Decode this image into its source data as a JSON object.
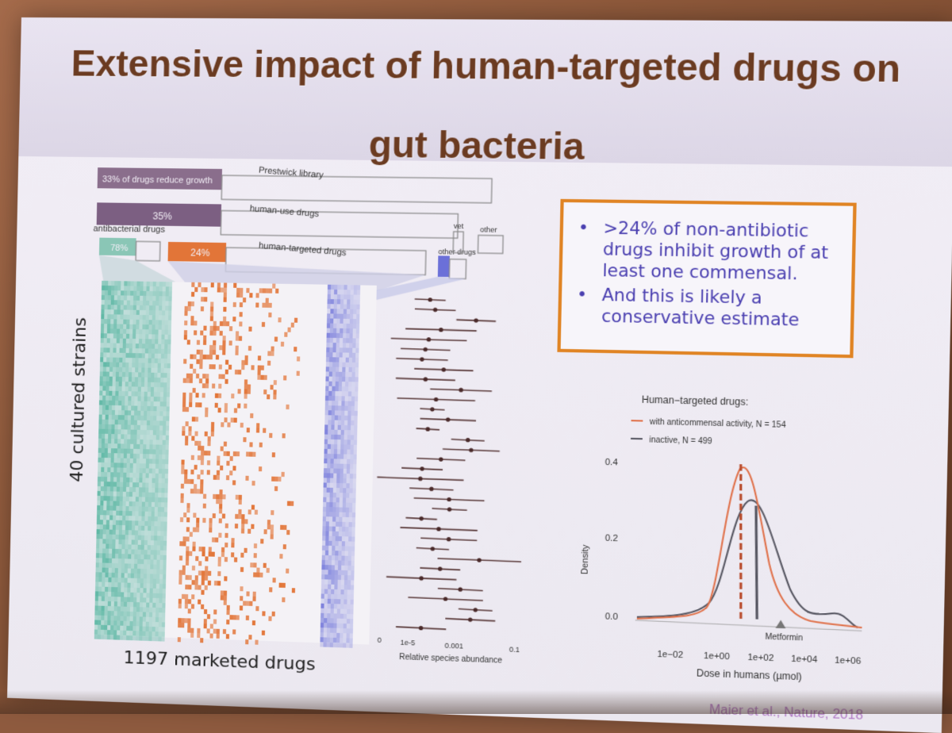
{
  "slide": {
    "title_line_1": "Extensive impact of human-targeted drugs on",
    "title_line_2": "gut bacteria",
    "y_axis_label": "40 cultured strains",
    "x_axis_label": "1197 marketed drugs",
    "citation": "Maier et al., Nature, 2018"
  },
  "bullets": [
    {
      "marker": "•",
      "text": ">24% of non-antibiotic drugs inhibit growth of at least one commensal."
    },
    {
      "marker": "•",
      "text": "And this is likely a conservative estimate"
    }
  ],
  "hierarchy": {
    "prestwick_label": "Prestwick library",
    "reduce_label": "33% of drugs reduce growth",
    "human_use_label": "human-use drugs",
    "human_use_pct": "35%",
    "antibacterial_label": "antibacterial drugs",
    "antibacterial_pct": "78%",
    "human_targeted_label": "human-targeted drugs",
    "human_targeted_pct": "24%",
    "other_drugs_label": "other drugs",
    "vet_label": "vet",
    "other_label": "other"
  },
  "forest_axis": {
    "ticks": [
      "0",
      "1e-5",
      "0.001",
      "0.1"
    ],
    "label": "Relative species abundance"
  },
  "density_chart": {
    "title": "Human−targeted drugs:",
    "legend": [
      {
        "label": "with anticommensal activity, N = 154",
        "color": "#e0714a"
      },
      {
        "label": "inactive, N = 499",
        "color": "#555560"
      }
    ],
    "y_ticks": [
      "0.0",
      "0.2",
      "0.4"
    ],
    "y_label": "Density",
    "x_ticks": [
      "1e−02",
      "1e+00",
      "1e+02",
      "1e+04",
      "1e+06"
    ],
    "x_label": "Dose in humans (µmol)",
    "annotation": "Metformin"
  },
  "colors": {
    "accent_orange": "#e08424",
    "bullet_text": "#4a3fb0",
    "heatmap_teal": "#5fb8a5",
    "heatmap_orange": "#e27538",
    "heatmap_blue": "#6b70d8",
    "title": "#6b3b21"
  }
}
